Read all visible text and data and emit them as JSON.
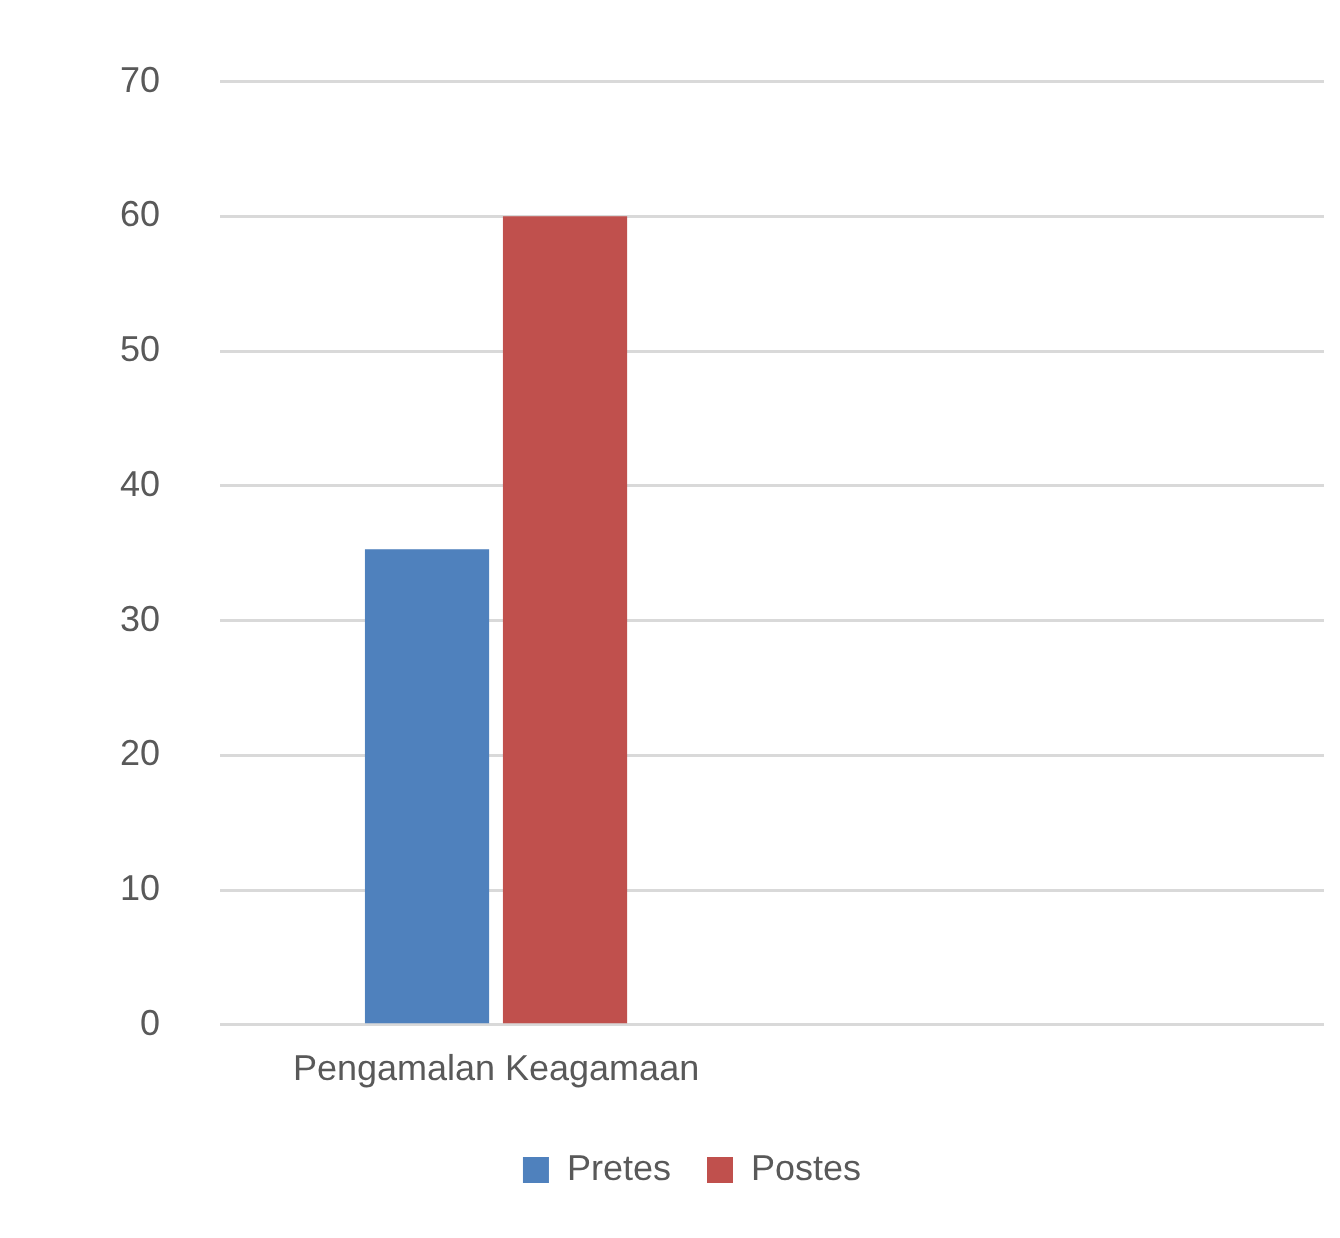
{
  "chart_data": {
    "type": "bar",
    "categories": [
      "Pengamalan Keagamaan",
      null
    ],
    "series": [
      {
        "name": "Pretes",
        "color": "#4f81bd",
        "values": [
          35.3,
          null
        ]
      },
      {
        "name": "Postes",
        "color": "#c0504d",
        "values": [
          60,
          null
        ]
      }
    ],
    "ylim": [
      0,
      70
    ],
    "yticks": [
      0,
      10,
      20,
      30,
      40,
      50,
      60,
      70
    ],
    "grid": "y",
    "legend": "bottom"
  }
}
